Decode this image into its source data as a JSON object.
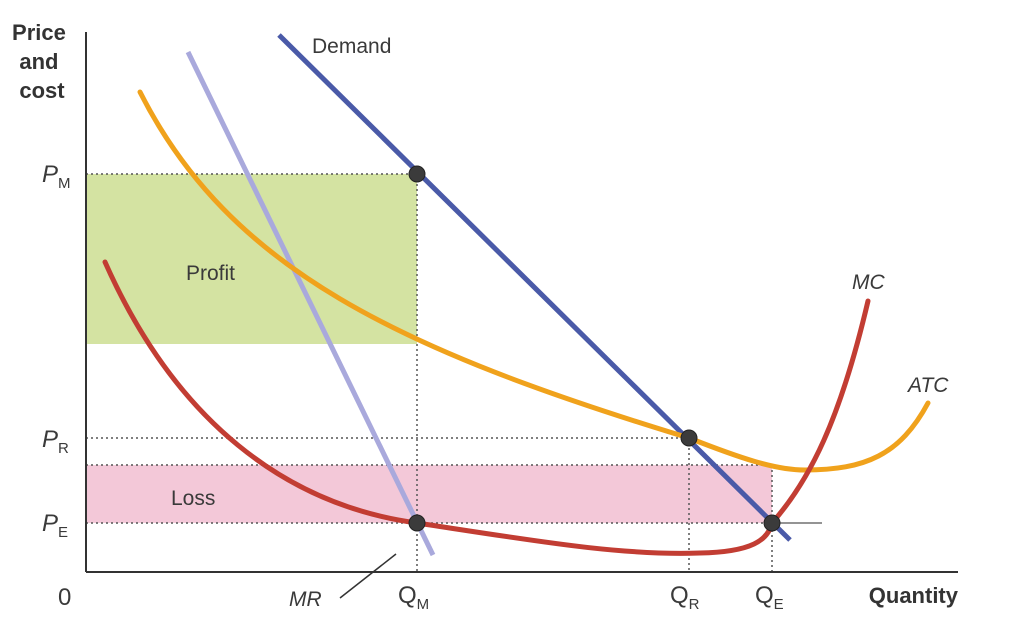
{
  "axes": {
    "y_title_lines": [
      "Price",
      "and",
      "cost"
    ],
    "x_title": "Quantity",
    "origin": "0"
  },
  "y_ticks": {
    "pm": {
      "main": "P",
      "sub": "M"
    },
    "pr": {
      "main": "P",
      "sub": "R"
    },
    "pe": {
      "main": "P",
      "sub": "E"
    }
  },
  "x_ticks": {
    "qm": {
      "main": "Q",
      "sub": "M"
    },
    "qr": {
      "main": "Q",
      "sub": "R"
    },
    "qe": {
      "main": "Q",
      "sub": "E"
    }
  },
  "curve_labels": {
    "demand": "Demand",
    "mr": "MR",
    "mc": "MC",
    "atc": "ATC"
  },
  "area_labels": {
    "profit": "Profit",
    "loss": "Loss"
  },
  "colors": {
    "profit_fill": "#d4e3a2",
    "loss_fill": "#f3c8d8",
    "demand": "#4a5aa8",
    "mr": "#a9a9dc",
    "atc": "#f0a21c",
    "mc": "#c23d33",
    "point": "#3b3b3b",
    "axis": "#333333",
    "dotted": "#555555"
  }
}
